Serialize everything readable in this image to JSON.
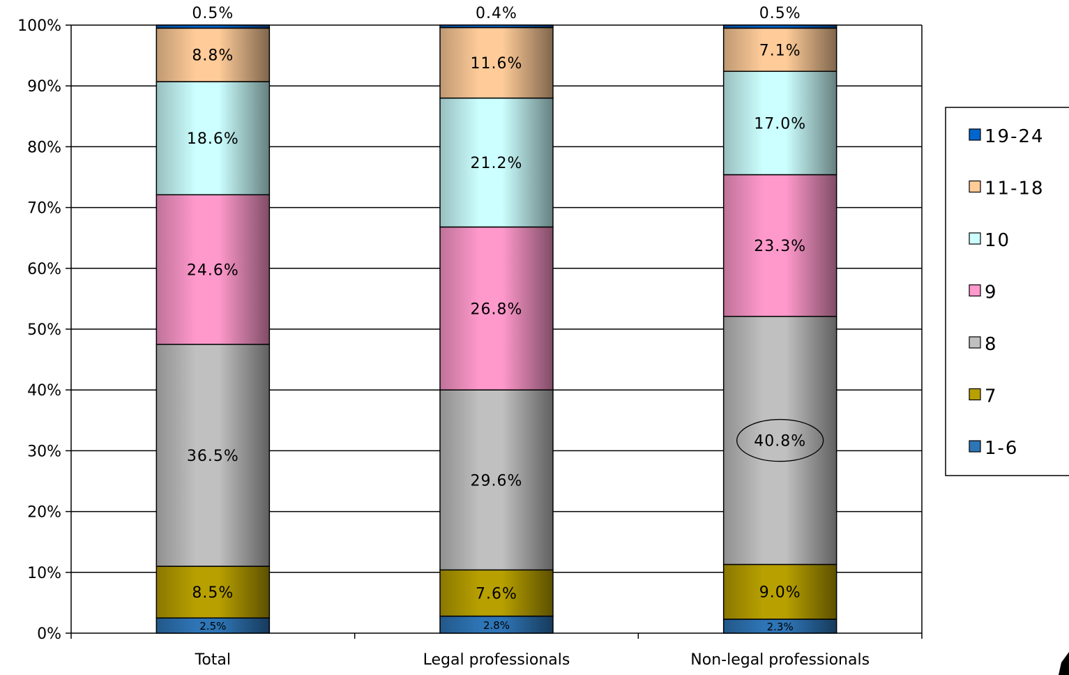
{
  "chart_data": {
    "type": "bar",
    "stacked": true,
    "percent": true,
    "categories": [
      "Total",
      "Legal professionals",
      "Non-legal professionals"
    ],
    "series": [
      {
        "name": "1-6",
        "color": "#2E75B6",
        "values": [
          2.5,
          2.8,
          2.3
        ]
      },
      {
        "name": "7",
        "color": "#B8A000",
        "values": [
          8.5,
          7.6,
          9.0
        ]
      },
      {
        "name": "8",
        "color": "#C0C0C0",
        "values": [
          36.5,
          29.6,
          40.8
        ]
      },
      {
        "name": "9",
        "color": "#FF99CC",
        "values": [
          24.6,
          26.8,
          23.3
        ]
      },
      {
        "name": "10",
        "color": "#CCFFFF",
        "values": [
          18.6,
          21.2,
          17.0
        ]
      },
      {
        "name": "11-18",
        "color": "#FFCC99",
        "values": [
          8.8,
          11.6,
          7.1
        ]
      },
      {
        "name": "19-24",
        "color": "#0066CC",
        "values": [
          0.5,
          0.4,
          0.5
        ]
      }
    ],
    "data_labels": [
      [
        "2.5%",
        "8.5%",
        "36.5%",
        "24.6%",
        "18.6%",
        "8.8%",
        "0.5%"
      ],
      [
        "2.8%",
        "7.6%",
        "29.6%",
        "26.8%",
        "21.2%",
        "11.6%",
        "0.4%"
      ],
      [
        "2.3%",
        "9.0%",
        "40.8%",
        "23.3%",
        "17.0%",
        "7.1%",
        "0.5%"
      ]
    ],
    "highlighted_label": {
      "category": "Non-legal professionals",
      "series": "8",
      "text": "40.8%"
    },
    "ylim": [
      0,
      100
    ],
    "yticks": [
      "0%",
      "10%",
      "20%",
      "30%",
      "40%",
      "50%",
      "60%",
      "70%",
      "80%",
      "90%",
      "100%"
    ],
    "grid": true,
    "legend": {
      "position": "right",
      "order": [
        "19-24",
        "11-18",
        "10",
        "9",
        "8",
        "7",
        "1-6"
      ]
    },
    "title": "",
    "xlabel": "",
    "ylabel": ""
  }
}
